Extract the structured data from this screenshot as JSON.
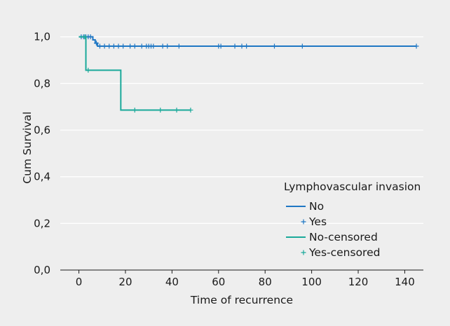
{
  "chart_data": {
    "type": "line",
    "title": "",
    "xlabel": "Time of recurrence",
    "ylabel": "Cum Survival",
    "xlim": [
      -8,
      148
    ],
    "ylim": [
      0,
      1.05
    ],
    "x_ticks": [
      0,
      20,
      40,
      60,
      80,
      100,
      120,
      140
    ],
    "x_tick_labels": [
      "0",
      "20",
      "40",
      "60",
      "80",
      "100",
      "120",
      "140"
    ],
    "y_ticks": [
      0.0,
      0.2,
      0.4,
      0.6,
      0.8,
      1.0
    ],
    "y_tick_labels": [
      "0,0",
      "0,2",
      "0,4",
      "0,6",
      "0,8",
      "1,0"
    ],
    "grid": "horizontal",
    "legend": {
      "title": "Lymphovascular invasion",
      "placement": "bottom-right",
      "entries": [
        {
          "label": "No",
          "marker": "line",
          "color": "#1f77c4"
        },
        {
          "label": "Yes",
          "marker": "plus",
          "color": "#1f77c4"
        },
        {
          "label": "No-censored",
          "marker": "line",
          "color": "#1aa99a"
        },
        {
          "label": "Yes-censored",
          "marker": "plus",
          "color": "#1aa99a"
        }
      ]
    },
    "series": [
      {
        "name": "No",
        "color": "#1f77c4",
        "steps": [
          [
            0,
            1.0
          ],
          [
            6,
            1.0
          ],
          [
            6,
            0.987
          ],
          [
            7,
            0.987
          ],
          [
            7,
            0.973
          ],
          [
            8,
            0.973
          ],
          [
            8,
            0.96
          ],
          [
            145,
            0.96
          ]
        ],
        "censored": [
          [
            1,
            1.0
          ],
          [
            2,
            1.0
          ],
          [
            3,
            1.0
          ],
          [
            4,
            1.0
          ],
          [
            5,
            1.0
          ],
          [
            7.5,
            0.973
          ],
          [
            9,
            0.96
          ],
          [
            11,
            0.96
          ],
          [
            13,
            0.96
          ],
          [
            15,
            0.96
          ],
          [
            17,
            0.96
          ],
          [
            19,
            0.96
          ],
          [
            22,
            0.96
          ],
          [
            24,
            0.96
          ],
          [
            27,
            0.96
          ],
          [
            29,
            0.96
          ],
          [
            30,
            0.96
          ],
          [
            31,
            0.96
          ],
          [
            32,
            0.96
          ],
          [
            36,
            0.96
          ],
          [
            38,
            0.96
          ],
          [
            43,
            0.96
          ],
          [
            60,
            0.96
          ],
          [
            61,
            0.96
          ],
          [
            67,
            0.96
          ],
          [
            70,
            0.96
          ],
          [
            72,
            0.96
          ],
          [
            84,
            0.96
          ],
          [
            96,
            0.96
          ],
          [
            145,
            0.96
          ]
        ]
      },
      {
        "name": "Yes",
        "color": "#1aa99a",
        "steps": [
          [
            0,
            1.0
          ],
          [
            3,
            1.0
          ],
          [
            3,
            0.857
          ],
          [
            18,
            0.857
          ],
          [
            18,
            0.686
          ],
          [
            48,
            0.686
          ]
        ],
        "censored": [
          [
            2.5,
            1.0
          ],
          [
            4,
            0.857
          ],
          [
            24,
            0.686
          ],
          [
            35,
            0.686
          ],
          [
            42,
            0.686
          ],
          [
            48,
            0.686
          ]
        ]
      }
    ]
  }
}
